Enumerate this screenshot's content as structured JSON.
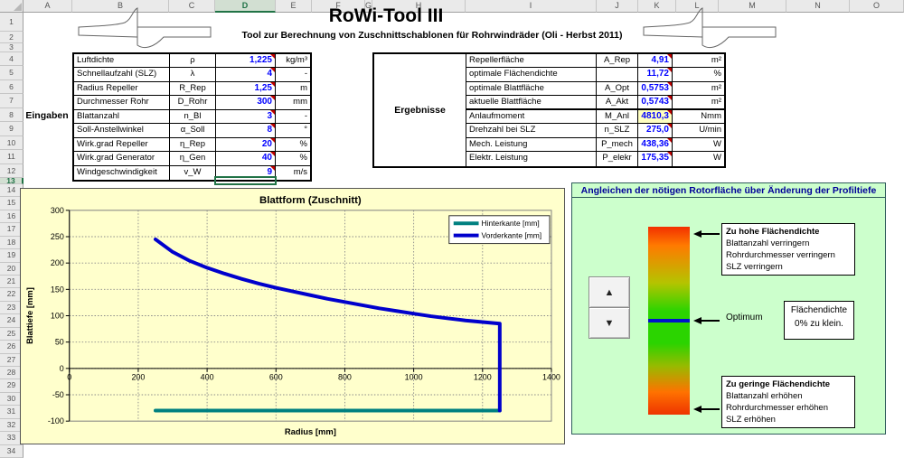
{
  "app": {
    "title": "RoWi-Tool III",
    "subtitle": "Tool zur Berechnung von Zuschnittschablonen für Rohrwindräder (Oli - Herbst 2011)"
  },
  "spreadsheet": {
    "column_letters": [
      "A",
      "B",
      "C",
      "D",
      "E",
      "F",
      "G",
      "H",
      "I",
      "J",
      "K",
      "L",
      "M",
      "N",
      "O"
    ],
    "selected_column": "D",
    "row_count": 34,
    "selected_row": 13,
    "selected_cell": "D13"
  },
  "inputs": {
    "group_label": "Eingaben",
    "rows": [
      {
        "label": "Luftdichte",
        "symbol": "ρ",
        "value": "1,225",
        "unit": "kg/m³"
      },
      {
        "label": "Schnellaufzahl (SLZ)",
        "symbol": "λ",
        "value": "4",
        "unit": "-"
      },
      {
        "label": "Radius Repeller",
        "symbol": "R_Rep",
        "value": "1,25",
        "unit": "m"
      },
      {
        "label": "Durchmesser Rohr",
        "symbol": "D_Rohr",
        "value": "300",
        "unit": "mm"
      },
      {
        "label": "Blattanzahl",
        "symbol": "n_Bl",
        "value": "3",
        "unit": "-"
      },
      {
        "label": "Soll-Anstellwinkel",
        "symbol": "α_Soll",
        "value": "8",
        "unit": "°"
      },
      {
        "label": "Wirk.grad Repeller",
        "symbol": "η_Rep",
        "value": "20",
        "unit": "%"
      },
      {
        "label": "Wirk.grad Generator",
        "symbol": "η_Gen",
        "value": "40",
        "unit": "%"
      },
      {
        "label": "Windgeschwindigkeit",
        "symbol": "v_W",
        "value": "9",
        "unit": "m/s"
      }
    ]
  },
  "results": {
    "group_label": "Ergebnisse",
    "rows": [
      {
        "label": "Repellerfläche",
        "symbol": "A_Rep",
        "value": "4,91",
        "unit": "m²",
        "highlighted": false
      },
      {
        "label": "optimale Flächendichte",
        "symbol": "",
        "value": "11,72",
        "unit": "%",
        "highlighted": false
      },
      {
        "label": "optimale Blattfläche",
        "symbol": "A_Opt",
        "value": "0,5753",
        "unit": "m²",
        "highlighted": false
      },
      {
        "label": "aktuelle Blattfläche",
        "symbol": "A_Akt",
        "value": "0,5743",
        "unit": "m²",
        "highlighted": false
      },
      {
        "label": "Anlaufmoment",
        "symbol": "M_Anl",
        "value": "4810,3",
        "unit": "Nmm",
        "highlighted": true
      },
      {
        "label": "Drehzahl bei SLZ",
        "symbol": "n_SLZ",
        "value": "275,0",
        "unit": "U/min",
        "highlighted": false
      },
      {
        "label": "Mech. Leistung",
        "symbol": "P_mech",
        "value": "438,36",
        "unit": "W",
        "highlighted": false
      },
      {
        "label": "Elektr. Leistung",
        "symbol": "P_elekr",
        "value": "175,35",
        "unit": "W",
        "highlighted": false
      }
    ]
  },
  "chart_data": {
    "type": "line",
    "title": "Blattform (Zuschnitt)",
    "xlabel": "Radius [mm]",
    "ylabel": "Blattiefe [mm]",
    "xlim": [
      0,
      1400
    ],
    "ylim": [
      -100,
      300
    ],
    "xticks": [
      0,
      200,
      400,
      600,
      800,
      1000,
      1200,
      1400
    ],
    "yticks": [
      300,
      250,
      200,
      150,
      100,
      50,
      0,
      -50,
      -100
    ],
    "grid": true,
    "background": "#FFFFCC",
    "legend_position": "top-right",
    "series": [
      {
        "name": "Hinterkante [mm]",
        "color": "#008080",
        "points": [
          [
            250,
            -80
          ],
          [
            1250,
            -80
          ]
        ]
      },
      {
        "name": "Vorderkante [mm]",
        "color": "#0000CC",
        "points": [
          [
            250,
            245
          ],
          [
            300,
            221
          ],
          [
            350,
            204
          ],
          [
            400,
            191
          ],
          [
            450,
            180
          ],
          [
            500,
            170
          ],
          [
            550,
            161
          ],
          [
            600,
            153
          ],
          [
            650,
            146
          ],
          [
            700,
            139
          ],
          [
            750,
            132
          ],
          [
            800,
            126
          ],
          [
            850,
            120
          ],
          [
            900,
            114
          ],
          [
            950,
            109
          ],
          [
            1000,
            104
          ],
          [
            1050,
            99
          ],
          [
            1100,
            95
          ],
          [
            1150,
            91
          ],
          [
            1200,
            88
          ],
          [
            1250,
            85
          ],
          [
            1250,
            -80
          ]
        ]
      }
    ]
  },
  "panel": {
    "title": "Angleichen der nötigen Rotorfläche über Änderung der Profiltiefe",
    "title_color": "#000099",
    "background": "#CCFFCC",
    "bar_top_color": "#F23000",
    "bar_mid_color": "#2BD400",
    "bar_bottom_color": "#EE3300",
    "optimum_line_color": "#0011CC",
    "optimum_label": "Optimum",
    "high_box": {
      "title": "Zu hohe Flächendichte",
      "lines": [
        "Blattanzahl verringern",
        "Rohrdurchmesser verringern",
        "SLZ verringern"
      ]
    },
    "info_box": {
      "lines": [
        "Flächendichte",
        "0% zu klein."
      ]
    },
    "low_box": {
      "title": "Zu geringe Flächendichte",
      "lines": [
        "Blattanzahl erhöhen",
        "Rohrdurchmesser erhöhen",
        "SLZ erhöhen"
      ]
    },
    "spinner": {
      "up_icon": "▲",
      "down_icon": "▼"
    }
  }
}
